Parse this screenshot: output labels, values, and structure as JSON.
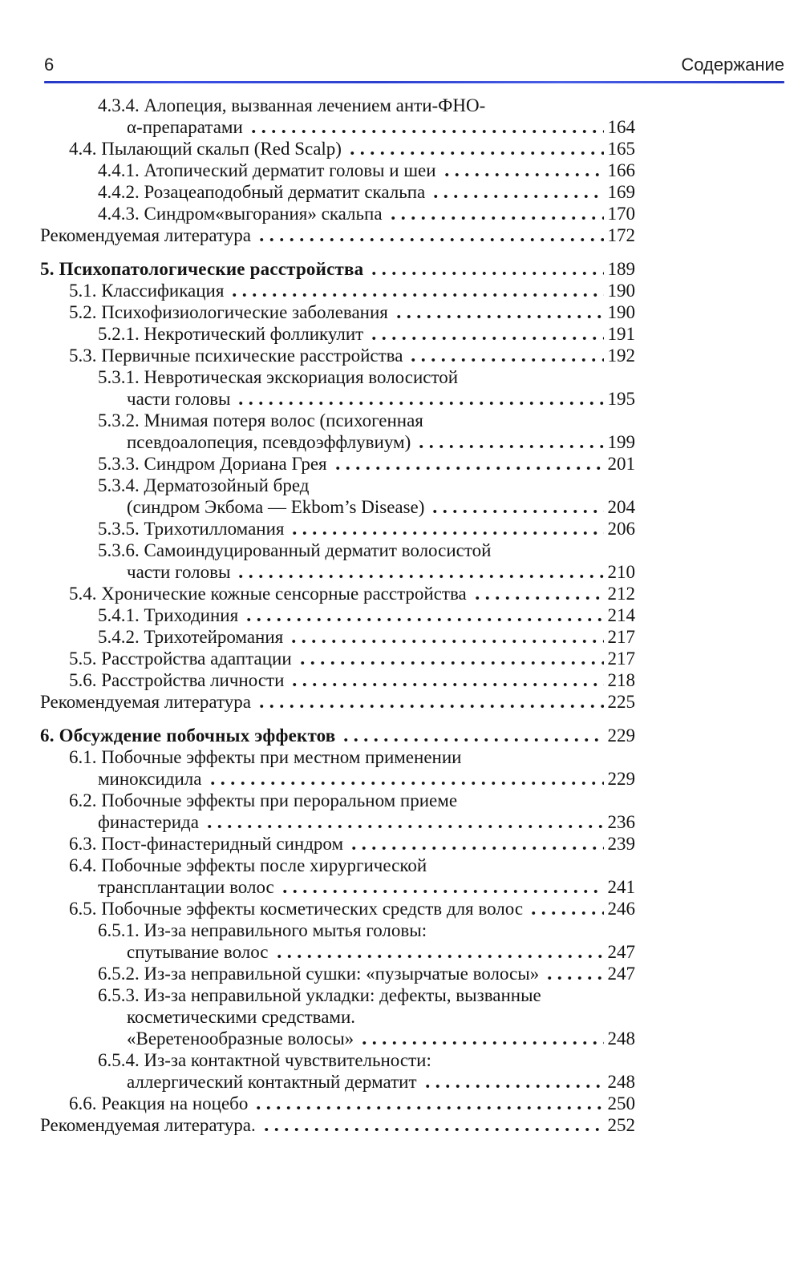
{
  "page": {
    "number": "6",
    "header_title": "Содержание"
  },
  "toc": {
    "rows": [
      {
        "text": "4.3.4. Алопеция, вызванная лечением анти-ФНО-",
        "level": 2,
        "page": null
      },
      {
        "text": "α-препаратами",
        "level": 3,
        "page": "164"
      },
      {
        "text": "4.4. Пылающий скальп (Red Scalp)",
        "level": 1,
        "page": "165"
      },
      {
        "text": "4.4.1. Атопический дерматит головы и шеи",
        "level": 2,
        "page": "166"
      },
      {
        "text": "4.4.2. Розацеаподобный дерматит скальпа",
        "level": 2,
        "page": "169"
      },
      {
        "text": "4.4.3. Синдром«выгорания» скальпа",
        "level": 2,
        "page": "170"
      },
      {
        "text": "Рекомендуемая литература",
        "level": 0,
        "page": "172"
      },
      {
        "text": "5. Психопатологические расстройства",
        "level": 0,
        "page": "189",
        "bold": true,
        "gap": true
      },
      {
        "text": "5.1. Классификация",
        "level": 1,
        "page": "190"
      },
      {
        "text": "5.2. Психофизиологические заболевания",
        "level": 1,
        "page": "190"
      },
      {
        "text": "5.2.1. Некротический фолликулит",
        "level": 2,
        "page": "191"
      },
      {
        "text": "5.3. Первичные психические расстройства",
        "level": 1,
        "page": "192"
      },
      {
        "text": "5.3.1. Невротическая экскориация волосистой",
        "level": 2,
        "page": null
      },
      {
        "text": "части головы",
        "level": 3,
        "page": "195"
      },
      {
        "text": "5.3.2. Мнимая потеря волос (психогенная",
        "level": 2,
        "page": null
      },
      {
        "text": "псевдоалопеция, псевдоэффлувиум)",
        "level": 3,
        "page": "199"
      },
      {
        "text": "5.3.3. Синдром Дориана Грея",
        "level": 2,
        "page": "201"
      },
      {
        "text": "5.3.4. Дерматозойный бред",
        "level": 2,
        "page": null
      },
      {
        "text": "(синдром Экбома — Ekbom’s Disease)",
        "level": 3,
        "page": "204"
      },
      {
        "text": "5.3.5. Трихотилломания",
        "level": 2,
        "page": "206"
      },
      {
        "text": "5.3.6. Самоиндуцированный дерматит волосистой",
        "level": 2,
        "page": null
      },
      {
        "text": "части головы",
        "level": 3,
        "page": "210"
      },
      {
        "text": "5.4. Хронические кожные сенсорные расстройства",
        "level": 1,
        "page": "212"
      },
      {
        "text": "5.4.1. Триходиния",
        "level": 2,
        "page": "214"
      },
      {
        "text": "5.4.2. Трихотейромания",
        "level": 2,
        "page": "217"
      },
      {
        "text": "5.5. Расстройства адаптации",
        "level": 1,
        "page": "217"
      },
      {
        "text": "5.6. Расстройства личности",
        "level": 1,
        "page": "218"
      },
      {
        "text": "Рекомендуемая литература",
        "level": 0,
        "page": "225"
      },
      {
        "text": "6. Обсуждение побочных эффектов",
        "level": 0,
        "page": "229",
        "bold": true,
        "gap": true
      },
      {
        "text": "6.1. Побочные эффекты при местном применении",
        "level": 1,
        "page": null
      },
      {
        "text": "миноксидила",
        "level": 2,
        "page": "229"
      },
      {
        "text": "6.2. Побочные эффекты при пероральном приеме",
        "level": 1,
        "page": null
      },
      {
        "text": "финастерида",
        "level": 2,
        "page": "236"
      },
      {
        "text": "6.3. Пост-финастеридный синдром",
        "level": 1,
        "page": "239"
      },
      {
        "text": "6.4. Побочные эффекты после хирургической",
        "level": 1,
        "page": null
      },
      {
        "text": "трансплантации волос",
        "level": 2,
        "page": "241"
      },
      {
        "text": "6.5. Побочные эффекты косметических средств для волос",
        "level": 1,
        "page": "246"
      },
      {
        "text": "6.5.1. Из-за неправильного мытья головы:",
        "level": 2,
        "page": null
      },
      {
        "text": "спутывание волос",
        "level": 3,
        "page": "247"
      },
      {
        "text": "6.5.2. Из-за неправильной сушки: «пузырчатые волосы»",
        "level": 2,
        "page": "247"
      },
      {
        "text": "6.5.3. Из-за неправильной укладки: дефекты, вызванные",
        "level": 2,
        "page": null
      },
      {
        "text": "косметическими средствами.",
        "level": 3,
        "page": null
      },
      {
        "text": "«Веретенообразные волосы»",
        "level": 3,
        "page": "248"
      },
      {
        "text": "6.5.4. Из-за контактной чувствительности:",
        "level": 2,
        "page": null
      },
      {
        "text": "аллергический контактный дерматит",
        "level": 3,
        "page": "248"
      },
      {
        "text": "6.6. Реакция на ноцебо",
        "level": 1,
        "page": "250"
      },
      {
        "text": "Рекомендуемая литература.",
        "level": 0,
        "page": "252"
      }
    ]
  }
}
